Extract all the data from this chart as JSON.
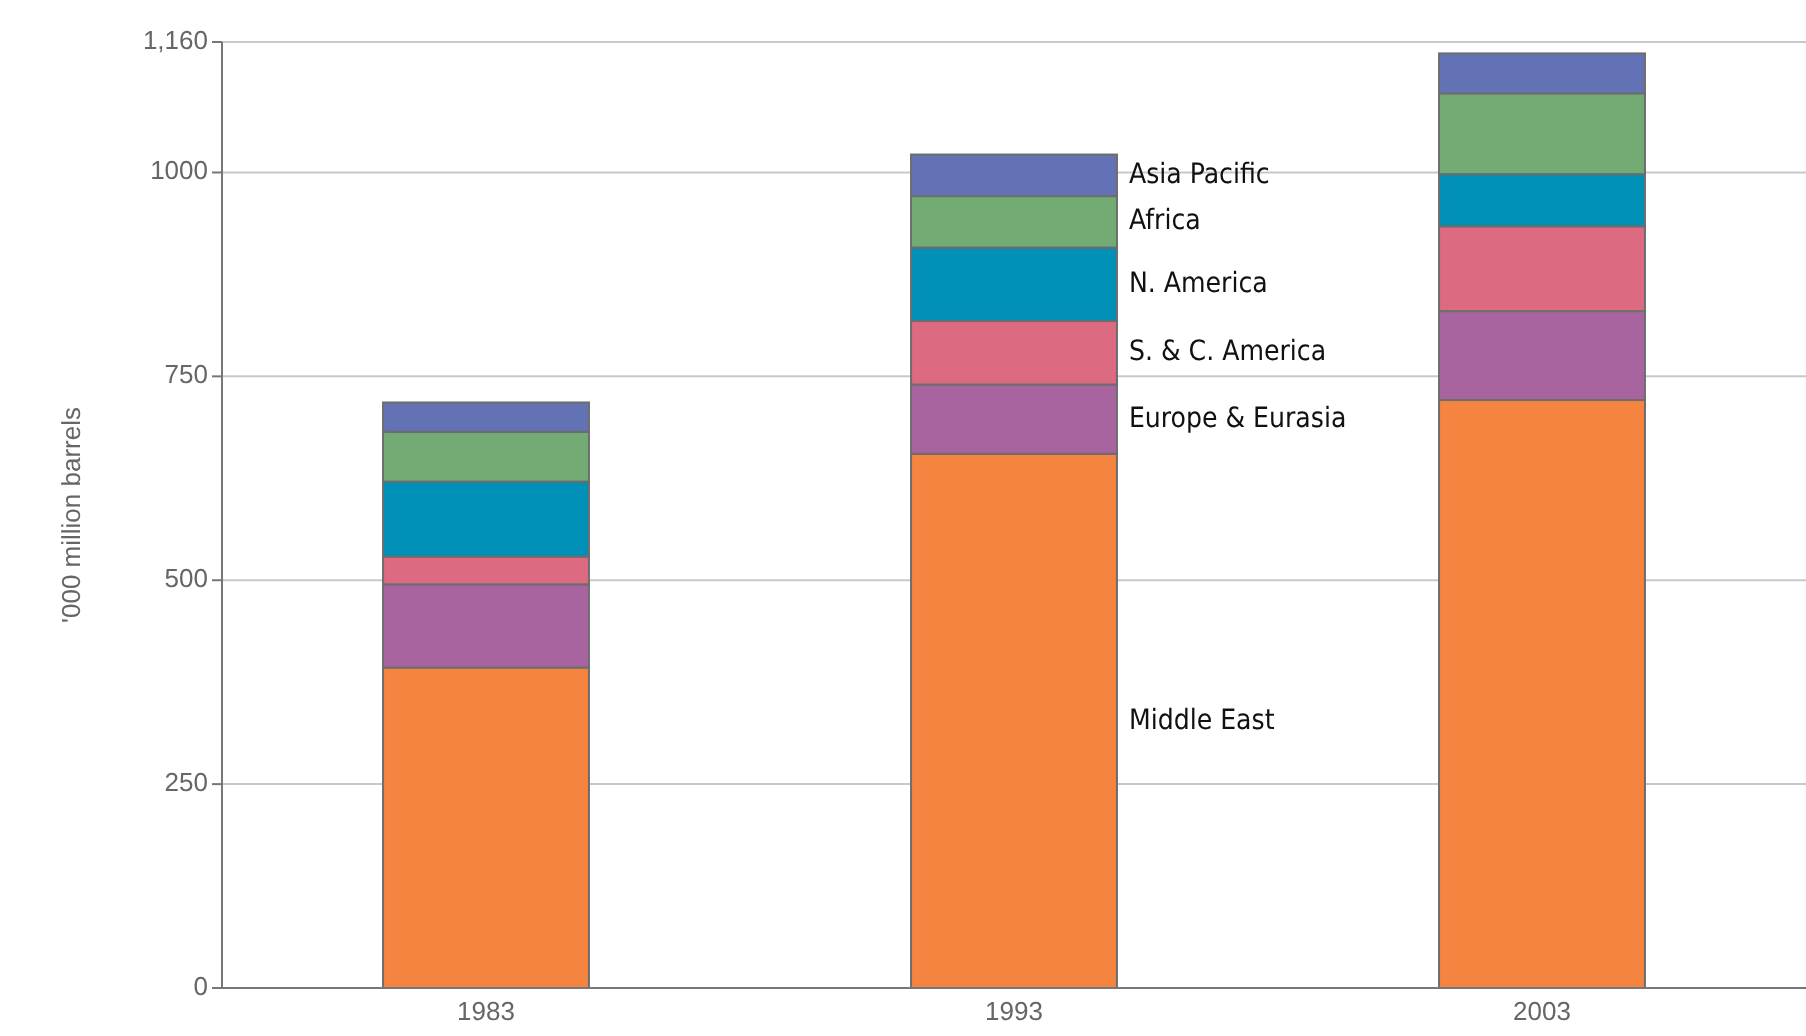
{
  "chart_data": {
    "type": "bar",
    "stacked": true,
    "ylabel": "'000 million barrels",
    "categories": [
      "1983",
      "1993",
      "2003"
    ],
    "series": [
      {
        "name": "Middle East",
        "color": "#f58440",
        "values": [
          393,
          655,
          721
        ]
      },
      {
        "name": "Europe & Eurasia",
        "color": "#a8649e",
        "values": [
          102,
          85,
          109
        ]
      },
      {
        "name": "S. & C. America",
        "color": "#dc6a80",
        "values": [
          34,
          78,
          104
        ]
      },
      {
        "name": "N. America",
        "color": "#0090b8",
        "values": [
          92,
          90,
          64
        ]
      },
      {
        "name": "Africa",
        "color": "#72ac74",
        "values": [
          61,
          63,
          99
        ]
      },
      {
        "name": "Asia Pacific",
        "color": "#6272b4",
        "values": [
          36,
          51,
          49
        ]
      }
    ],
    "ylim": [
      0,
      1160
    ],
    "yticks": [
      0,
      250,
      500,
      750,
      1000,
      {
        "value": 1160,
        "label": "1,160"
      }
    ],
    "grid": "y",
    "legend": false
  }
}
